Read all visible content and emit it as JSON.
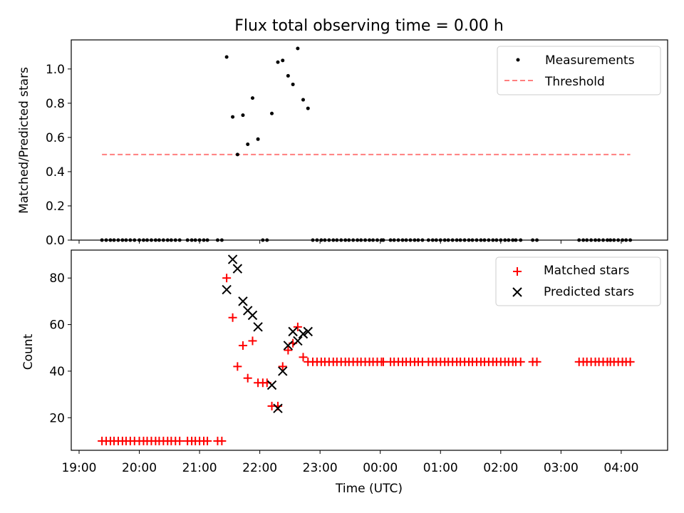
{
  "chart_data": [
    {
      "type": "scatter",
      "title": "Flux total observing time = 0.00 h",
      "xlabel": "",
      "ylabel": "Matched/Predicted stars",
      "xlim_hours": [
        18.87,
        28.77
      ],
      "ylim": [
        0,
        1.17
      ],
      "yticks": [
        0.0,
        0.2,
        0.4,
        0.6,
        0.8,
        1.0
      ],
      "ytick_labels": [
        "0.0",
        "0.2",
        "0.4",
        "0.6",
        "0.8",
        "1.0"
      ],
      "legend_position": "upper right",
      "series": [
        {
          "name": "Measurements",
          "marker": "dot",
          "color": "#000000",
          "x_hours": [
            19.38,
            19.45,
            19.52,
            19.58,
            19.65,
            19.72,
            19.78,
            19.85,
            19.92,
            20.0,
            20.07,
            20.13,
            20.2,
            20.27,
            20.33,
            20.4,
            20.47,
            20.53,
            20.6,
            20.67,
            20.8,
            20.87,
            20.93,
            21.0,
            21.07,
            21.13,
            21.3,
            21.37,
            21.45,
            21.55,
            21.63,
            21.72,
            21.8,
            21.88,
            21.97,
            22.05,
            22.12,
            22.2,
            22.3,
            22.38,
            22.47,
            22.55,
            22.63,
            22.72,
            22.8,
            22.88,
            22.95,
            23.02,
            23.08,
            23.15,
            23.22,
            23.28,
            23.35,
            23.42,
            23.48,
            23.55,
            23.62,
            23.68,
            23.75,
            23.82,
            23.88,
            23.95,
            24.02,
            24.05,
            24.17,
            24.23,
            24.3,
            24.37,
            24.43,
            24.5,
            24.57,
            24.63,
            24.7,
            24.8,
            24.87,
            24.93,
            25.0,
            25.07,
            25.13,
            25.2,
            25.27,
            25.33,
            25.4,
            25.47,
            25.53,
            25.6,
            25.67,
            25.73,
            25.8,
            25.87,
            25.93,
            26.0,
            26.07,
            26.13,
            26.2,
            26.25,
            26.33,
            26.53,
            26.6,
            27.3,
            27.37,
            27.43,
            27.5,
            27.57,
            27.63,
            27.7,
            27.77,
            27.82,
            27.88,
            27.95,
            28.02,
            28.08,
            28.15
          ],
          "values": [
            0,
            0,
            0,
            0,
            0,
            0,
            0,
            0,
            0,
            0,
            0,
            0,
            0,
            0,
            0,
            0,
            0,
            0,
            0,
            0,
            0,
            0,
            0,
            0,
            0,
            0,
            0,
            0,
            1.07,
            0.72,
            0.5,
            0.73,
            0.56,
            0.83,
            0.59,
            0,
            0,
            0.74,
            1.04,
            1.05,
            0.96,
            0.91,
            1.12,
            0.82,
            0.77,
            0,
            0,
            0,
            0,
            0,
            0,
            0,
            0,
            0,
            0,
            0,
            0,
            0,
            0,
            0,
            0,
            0,
            0,
            0,
            0,
            0,
            0,
            0,
            0,
            0,
            0,
            0,
            0,
            0,
            0,
            0,
            0,
            0,
            0,
            0,
            0,
            0,
            0,
            0,
            0,
            0,
            0,
            0,
            0,
            0,
            0,
            0,
            0,
            0,
            0,
            0,
            0,
            0,
            0,
            0,
            0,
            0,
            0,
            0,
            0,
            0,
            0,
            0,
            0,
            0,
            0,
            0,
            0
          ]
        },
        {
          "name": "Threshold",
          "marker": "dashed-line",
          "color": "#ff7f7f",
          "x_hours": [
            19.38,
            28.15
          ],
          "values": [
            0.5,
            0.5
          ]
        }
      ]
    },
    {
      "type": "scatter",
      "title": "",
      "xlabel": "Time (UTC)",
      "ylabel": "Count",
      "xlim_hours": [
        18.87,
        28.77
      ],
      "ylim": [
        6,
        92
      ],
      "yticks": [
        20,
        40,
        60,
        80
      ],
      "ytick_labels": [
        "20",
        "40",
        "60",
        "80"
      ],
      "xticks_hours": [
        19,
        20,
        21,
        22,
        23,
        24,
        25,
        26,
        27,
        28
      ],
      "xtick_labels": [
        "19:00",
        "20:00",
        "21:00",
        "22:00",
        "23:00",
        "00:00",
        "01:00",
        "02:00",
        "03:00",
        "04:00"
      ],
      "legend_position": "upper right",
      "series": [
        {
          "name": "Matched stars",
          "marker": "plus",
          "color": "#ff0000",
          "x_hours": [
            19.38,
            19.45,
            19.52,
            19.58,
            19.65,
            19.72,
            19.78,
            19.85,
            19.92,
            20.0,
            20.07,
            20.13,
            20.2,
            20.27,
            20.33,
            20.4,
            20.47,
            20.53,
            20.6,
            20.67,
            20.8,
            20.87,
            20.93,
            21.0,
            21.07,
            21.13,
            21.3,
            21.37,
            21.45,
            21.55,
            21.63,
            21.72,
            21.8,
            21.88,
            21.97,
            22.05,
            22.12,
            22.2,
            22.3,
            22.38,
            22.47,
            22.55,
            22.63,
            22.72,
            22.8,
            22.88,
            22.95,
            23.02,
            23.08,
            23.15,
            23.22,
            23.28,
            23.35,
            23.42,
            23.48,
            23.55,
            23.62,
            23.68,
            23.75,
            23.82,
            23.88,
            23.95,
            24.02,
            24.05,
            24.17,
            24.23,
            24.3,
            24.37,
            24.43,
            24.5,
            24.57,
            24.63,
            24.7,
            24.8,
            24.87,
            24.93,
            25.0,
            25.07,
            25.13,
            25.2,
            25.27,
            25.33,
            25.4,
            25.47,
            25.53,
            25.6,
            25.67,
            25.73,
            25.8,
            25.87,
            25.93,
            26.0,
            26.07,
            26.13,
            26.2,
            26.25,
            26.33,
            26.53,
            26.6,
            27.3,
            27.37,
            27.43,
            27.5,
            27.57,
            27.63,
            27.7,
            27.77,
            27.82,
            27.88,
            27.95,
            28.02,
            28.08,
            28.15
          ],
          "values": [
            10,
            10,
            10,
            10,
            10,
            10,
            10,
            10,
            10,
            10,
            10,
            10,
            10,
            10,
            10,
            10,
            10,
            10,
            10,
            10,
            10,
            10,
            10,
            10,
            10,
            10,
            10,
            10,
            80,
            63,
            42,
            51,
            37,
            53,
            35,
            35,
            35,
            25,
            25,
            42,
            49,
            52,
            59,
            46,
            44,
            44,
            44,
            44,
            44,
            44,
            44,
            44,
            44,
            44,
            44,
            44,
            44,
            44,
            44,
            44,
            44,
            44,
            44,
            44,
            44,
            44,
            44,
            44,
            44,
            44,
            44,
            44,
            44,
            44,
            44,
            44,
            44,
            44,
            44,
            44,
            44,
            44,
            44,
            44,
            44,
            44,
            44,
            44,
            44,
            44,
            44,
            44,
            44,
            44,
            44,
            44,
            44,
            44,
            44,
            44,
            44,
            44,
            44,
            44,
            44,
            44,
            44,
            44,
            44,
            44,
            44,
            44,
            44
          ]
        },
        {
          "name": "Predicted stars",
          "marker": "x",
          "color": "#000000",
          "x_hours": [
            21.45,
            21.55,
            21.63,
            21.72,
            21.8,
            21.88,
            21.97,
            22.2,
            22.3,
            22.38,
            22.47,
            22.55,
            22.63,
            22.72,
            22.8
          ],
          "values": [
            75,
            88,
            84,
            70,
            66,
            64,
            59,
            34,
            24,
            40,
            51,
            57,
            53,
            56,
            57
          ]
        }
      ]
    }
  ]
}
